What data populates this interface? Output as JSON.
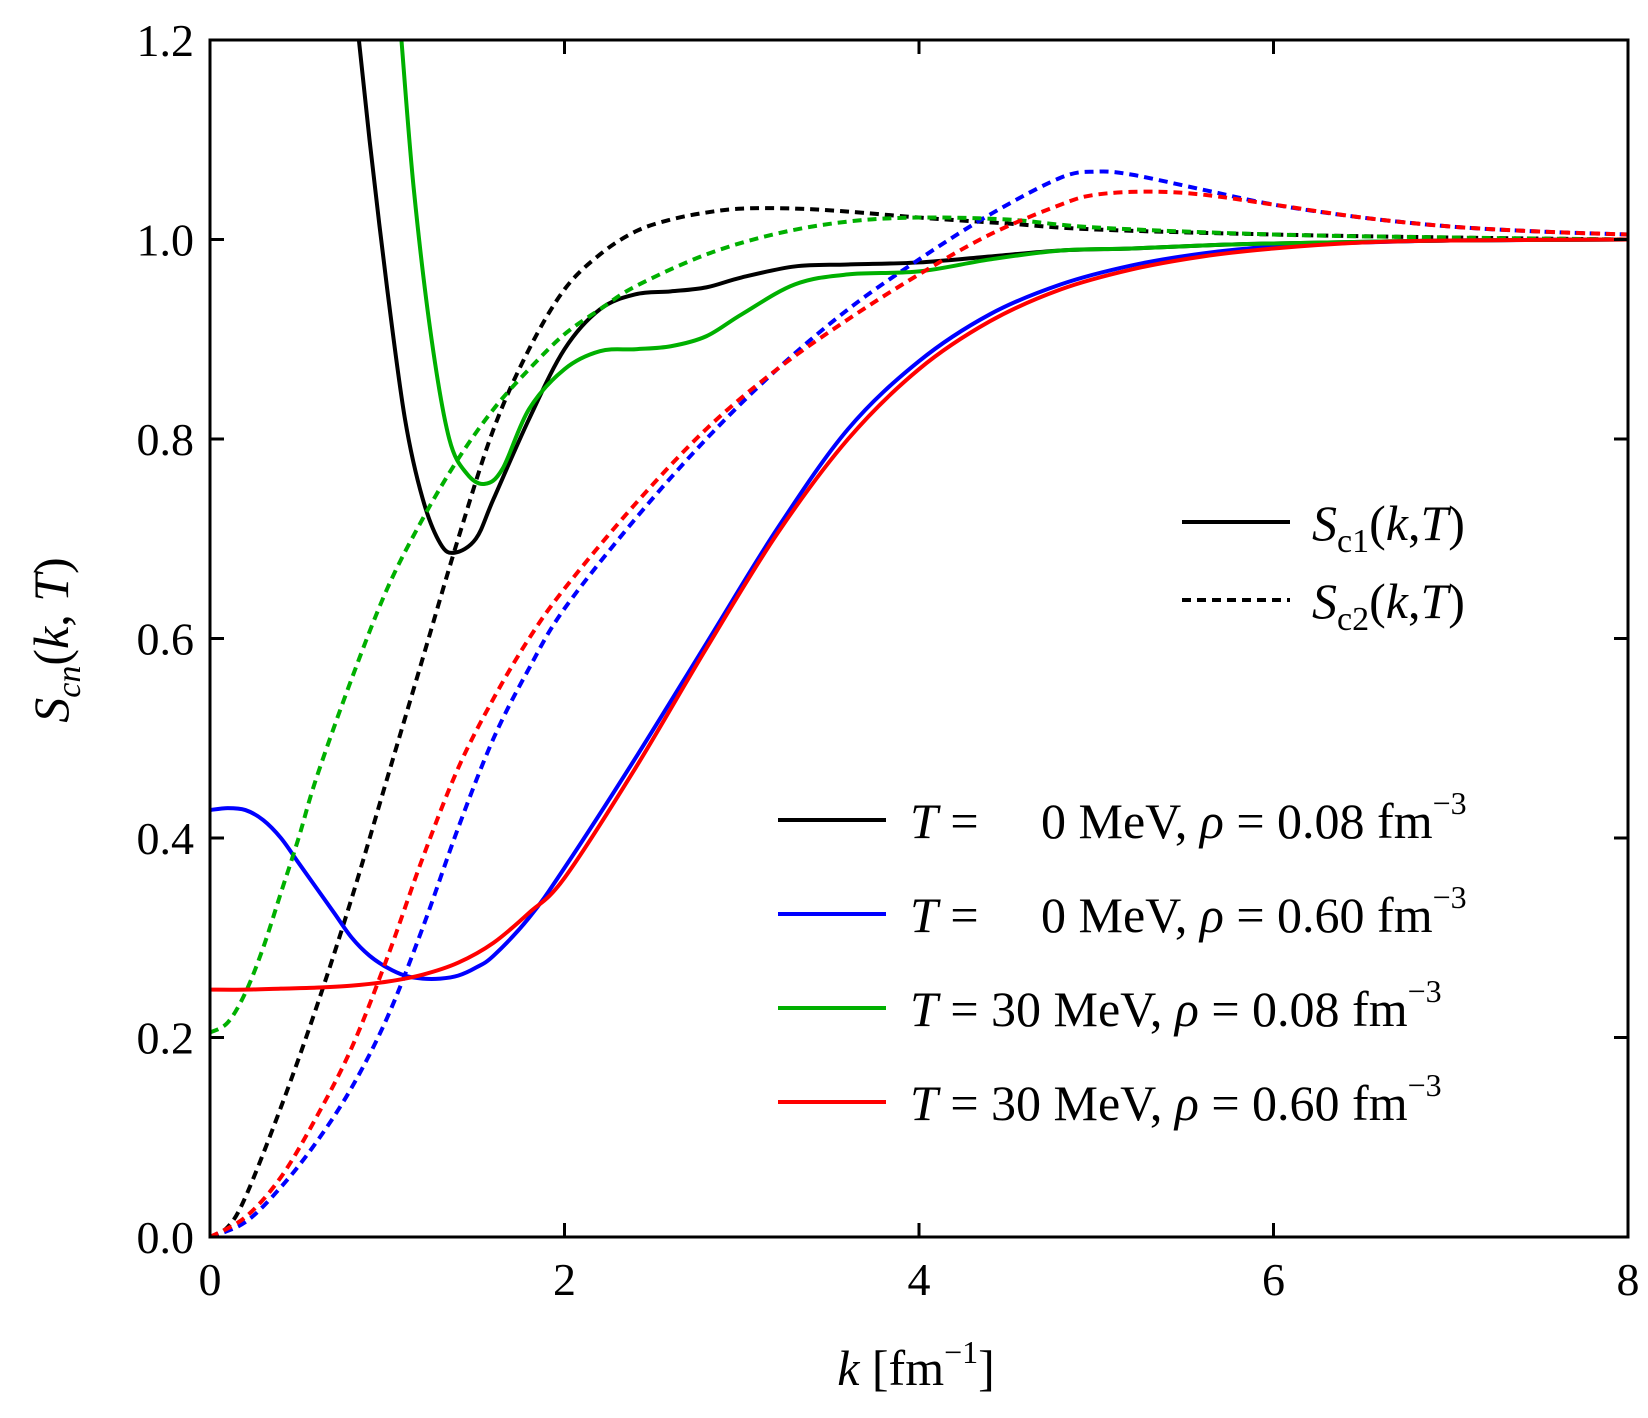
{
  "chart_data": {
    "type": "line",
    "title": "",
    "xlabel": "k [fm^-1]",
    "ylabel": "S_cn(k,T)",
    "xlim": [
      0,
      8
    ],
    "ylim": [
      0,
      1.2
    ],
    "x_ticks": [
      "0",
      "2",
      "4",
      "6",
      "8"
    ],
    "y_ticks": [
      "0.0",
      "0.2",
      "0.4",
      "0.6",
      "0.8",
      "1.0",
      "1.2"
    ],
    "grid": false,
    "style_legend": [
      {
        "label": "S_c1(k,T)",
        "dash": "solid"
      },
      {
        "label": "S_c2(k,T)",
        "dash": "dashed"
      }
    ],
    "series": [
      {
        "name": "T = 0 MeV, ρ = 0.08 fm^-3, S_c1",
        "T": "0",
        "rho": "0.08",
        "color": "#000000",
        "dash": "solid",
        "x": [
          0.84,
          0.9,
          1.0,
          1.1,
          1.2,
          1.3,
          1.38,
          1.5,
          1.6,
          1.8,
          2.0,
          2.2,
          2.4,
          2.6,
          2.8,
          3.0,
          3.3,
          3.6,
          4.0,
          4.4,
          4.8,
          5.2,
          5.6,
          6.0,
          7.0,
          8.0
        ],
        "y": [
          1.2,
          1.1,
          0.95,
          0.82,
          0.74,
          0.695,
          0.686,
          0.7,
          0.74,
          0.82,
          0.89,
          0.93,
          0.945,
          0.948,
          0.952,
          0.962,
          0.973,
          0.975,
          0.977,
          0.983,
          0.989,
          0.991,
          0.994,
          0.996,
          0.999,
          1.0
        ]
      },
      {
        "name": "T = 0 MeV, ρ = 0.08 fm^-3, S_c2",
        "T": "0",
        "rho": "0.08",
        "color": "#000000",
        "dash": "dashed",
        "x": [
          0.0,
          0.1,
          0.2,
          0.4,
          0.6,
          0.8,
          1.0,
          1.2,
          1.4,
          1.6,
          1.8,
          2.0,
          2.2,
          2.4,
          2.6,
          2.8,
          3.0,
          3.3,
          3.6,
          4.0,
          4.5,
          5.0,
          6.0,
          7.0,
          8.0
        ],
        "y": [
          0.0,
          0.01,
          0.04,
          0.13,
          0.23,
          0.34,
          0.46,
          0.58,
          0.7,
          0.81,
          0.89,
          0.95,
          0.985,
          1.008,
          1.02,
          1.027,
          1.031,
          1.031,
          1.028,
          1.022,
          1.016,
          1.01,
          1.005,
          1.002,
          1.0
        ]
      },
      {
        "name": "T = 0 MeV, ρ = 0.60 fm^-3, S_c1",
        "T": "0",
        "rho": "0.60",
        "color": "#0000ff",
        "dash": "solid",
        "x": [
          0.0,
          0.1,
          0.2,
          0.3,
          0.4,
          0.5,
          0.6,
          0.7,
          0.8,
          0.9,
          1.0,
          1.1,
          1.2,
          1.3,
          1.4,
          1.5,
          1.6,
          1.8,
          2.0,
          2.4,
          2.8,
          3.2,
          3.6,
          4.0,
          4.4,
          4.8,
          5.2,
          5.6,
          6.0,
          6.5,
          7.0,
          8.0
        ],
        "y": [
          0.428,
          0.43,
          0.428,
          0.418,
          0.4,
          0.375,
          0.35,
          0.325,
          0.3,
          0.282,
          0.27,
          0.262,
          0.259,
          0.259,
          0.262,
          0.27,
          0.282,
          0.32,
          0.37,
          0.48,
          0.595,
          0.71,
          0.81,
          0.878,
          0.925,
          0.955,
          0.974,
          0.986,
          0.993,
          0.997,
          0.999,
          1.0
        ]
      },
      {
        "name": "T = 0 MeV, ρ = 0.60 fm^-3, S_c2",
        "T": "0",
        "rho": "0.60",
        "color": "#0000ff",
        "dash": "dashed",
        "x": [
          0.0,
          0.2,
          0.4,
          0.6,
          0.8,
          1.0,
          1.2,
          1.4,
          1.6,
          1.8,
          2.0,
          2.4,
          2.8,
          3.2,
          3.6,
          4.0,
          4.4,
          4.8,
          5.0,
          5.2,
          5.6,
          6.0,
          6.5,
          7.0,
          7.5,
          8.0
        ],
        "y": [
          0.0,
          0.015,
          0.05,
          0.095,
          0.15,
          0.22,
          0.31,
          0.41,
          0.5,
          0.57,
          0.63,
          0.72,
          0.8,
          0.87,
          0.93,
          0.98,
          1.025,
          1.062,
          1.068,
          1.065,
          1.05,
          1.035,
          1.022,
          1.013,
          1.008,
          1.005
        ]
      },
      {
        "name": "T = 30 MeV, ρ = 0.08 fm^-3, S_c1",
        "T": "30",
        "rho": "0.08",
        "color": "#00b000",
        "dash": "solid",
        "x": [
          1.08,
          1.15,
          1.25,
          1.35,
          1.45,
          1.55,
          1.65,
          1.8,
          2.0,
          2.2,
          2.4,
          2.6,
          2.8,
          3.0,
          3.3,
          3.6,
          4.0,
          4.4,
          4.8,
          5.2,
          5.6,
          6.0,
          7.0,
          8.0
        ],
        "y": [
          1.2,
          1.05,
          0.9,
          0.8,
          0.765,
          0.755,
          0.77,
          0.83,
          0.87,
          0.888,
          0.89,
          0.893,
          0.903,
          0.925,
          0.955,
          0.965,
          0.968,
          0.98,
          0.989,
          0.991,
          0.994,
          0.996,
          0.999,
          1.0
        ]
      },
      {
        "name": "T = 30 MeV, ρ = 0.08 fm^-3, S_c2",
        "T": "30",
        "rho": "0.08",
        "color": "#00b000",
        "dash": "dashed",
        "x": [
          0.0,
          0.1,
          0.2,
          0.3,
          0.4,
          0.5,
          0.6,
          0.8,
          1.0,
          1.2,
          1.4,
          1.6,
          1.8,
          2.0,
          2.2,
          2.4,
          2.8,
          3.2,
          3.6,
          4.0,
          4.5,
          5.0,
          6.0,
          7.0,
          8.0
        ],
        "y": [
          0.205,
          0.215,
          0.245,
          0.29,
          0.345,
          0.4,
          0.46,
          0.56,
          0.65,
          0.72,
          0.78,
          0.83,
          0.87,
          0.905,
          0.93,
          0.953,
          0.985,
          1.006,
          1.018,
          1.022,
          1.02,
          1.012,
          1.005,
          1.002,
          1.0
        ]
      },
      {
        "name": "T = 30 MeV, ρ = 0.60 fm^-3, S_c1",
        "T": "30",
        "rho": "0.60",
        "color": "#ff0000",
        "dash": "solid",
        "x": [
          0.0,
          0.2,
          0.4,
          0.6,
          0.8,
          1.0,
          1.2,
          1.4,
          1.6,
          1.8,
          2.0,
          2.4,
          2.8,
          3.2,
          3.6,
          4.0,
          4.4,
          4.8,
          5.2,
          5.6,
          6.0,
          6.5,
          7.0,
          8.0
        ],
        "y": [
          0.248,
          0.248,
          0.249,
          0.25,
          0.252,
          0.256,
          0.263,
          0.275,
          0.295,
          0.325,
          0.36,
          0.47,
          0.59,
          0.705,
          0.8,
          0.87,
          0.918,
          0.95,
          0.97,
          0.983,
          0.991,
          0.997,
          0.999,
          1.0
        ]
      },
      {
        "name": "T = 30 MeV, ρ = 0.60 fm^-3, S_c2",
        "T": "30",
        "rho": "0.60",
        "color": "#ff0000",
        "dash": "dashed",
        "x": [
          0.0,
          0.2,
          0.4,
          0.6,
          0.8,
          1.0,
          1.2,
          1.4,
          1.6,
          1.8,
          2.0,
          2.4,
          2.8,
          3.2,
          3.6,
          4.0,
          4.4,
          4.8,
          5.0,
          5.3,
          5.6,
          6.0,
          6.5,
          7.0,
          7.5,
          8.0
        ],
        "y": [
          0.0,
          0.02,
          0.06,
          0.12,
          0.19,
          0.28,
          0.38,
          0.47,
          0.54,
          0.6,
          0.65,
          0.735,
          0.81,
          0.87,
          0.92,
          0.965,
          1.005,
          1.035,
          1.045,
          1.048,
          1.045,
          1.035,
          1.022,
          1.013,
          1.008,
          1.005
        ]
      }
    ],
    "legend": [
      {
        "T": "0",
        "rho": "0.08",
        "color": "#000000"
      },
      {
        "T": "0",
        "rho": "0.60",
        "color": "#0000ff"
      },
      {
        "T": "30",
        "rho": "0.08",
        "color": "#00b000"
      },
      {
        "T": "30",
        "rho": "0.60",
        "color": "#ff0000"
      }
    ],
    "legend_placement": "bottom-right"
  }
}
